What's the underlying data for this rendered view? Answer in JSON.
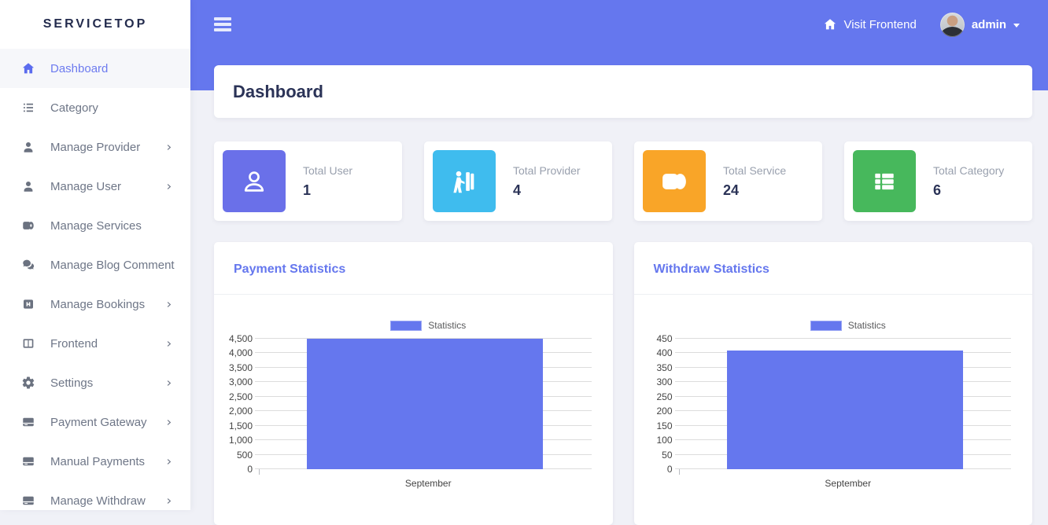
{
  "app": {
    "name": "SERVICETOP"
  },
  "topbar": {
    "visit_frontend": "Visit Frontend",
    "user": "admin"
  },
  "page": {
    "title": "Dashboard"
  },
  "sidebar": {
    "items": [
      {
        "label": "Dashboard",
        "icon": "home",
        "active": true,
        "has_children": false
      },
      {
        "label": "Category",
        "icon": "list",
        "active": false,
        "has_children": false
      },
      {
        "label": "Manage Provider",
        "icon": "user",
        "active": false,
        "has_children": true
      },
      {
        "label": "Manage User",
        "icon": "user",
        "active": false,
        "has_children": true
      },
      {
        "label": "Manage Services",
        "icon": "roll",
        "active": false,
        "has_children": false
      },
      {
        "label": "Manage Blog Comment",
        "icon": "comments",
        "active": false,
        "has_children": false
      },
      {
        "label": "Manage Bookings",
        "icon": "booking",
        "active": false,
        "has_children": true
      },
      {
        "label": "Frontend",
        "icon": "columns",
        "active": false,
        "has_children": true
      },
      {
        "label": "Settings",
        "icon": "gear",
        "active": false,
        "has_children": true
      },
      {
        "label": "Payment Gateway",
        "icon": "credit-card",
        "active": false,
        "has_children": true
      },
      {
        "label": "Manual Payments",
        "icon": "credit-card",
        "active": false,
        "has_children": true
      },
      {
        "label": "Manage Withdraw",
        "icon": "credit-card",
        "active": false,
        "has_children": true
      }
    ]
  },
  "stats": [
    {
      "label": "Total User",
      "value": "1",
      "icon": "stat-user",
      "color": "#6a70e9"
    },
    {
      "label": "Total Provider",
      "value": "4",
      "icon": "stat-provider",
      "color": "#3fbcee"
    },
    {
      "label": "Total Service",
      "value": "24",
      "icon": "stat-service",
      "color": "#f9a528"
    },
    {
      "label": "Total Category",
      "value": "6",
      "icon": "stat-category",
      "color": "#47b85c"
    }
  ],
  "chart_data": [
    {
      "type": "bar",
      "title": "Payment Statistics",
      "legend": "Statistics",
      "legend_position": "top",
      "categories": [
        "September"
      ],
      "values": [
        4500
      ],
      "ylim": [
        0,
        4500
      ],
      "ytick_labels": [
        "0",
        "500",
        "1,000",
        "1,500",
        "2,000",
        "2,500",
        "3,000",
        "3,500",
        "4,000",
        "4,500"
      ],
      "bar_color": "#6577ee",
      "grid": true
    },
    {
      "type": "bar",
      "title": "Withdraw Statistics",
      "legend": "Statistics",
      "legend_position": "top",
      "categories": [
        "September"
      ],
      "values": [
        410
      ],
      "ylim": [
        0,
        450
      ],
      "ytick_labels": [
        "0",
        "50",
        "100",
        "150",
        "200",
        "250",
        "300",
        "350",
        "400",
        "450"
      ],
      "bar_color": "#6577ee",
      "grid": true
    }
  ],
  "colors": {
    "primary": "#6577ee",
    "background": "#f0f1f7",
    "heading": "#2b3357",
    "muted": "#99a0ae",
    "sidebar_text": "#6e7687"
  }
}
